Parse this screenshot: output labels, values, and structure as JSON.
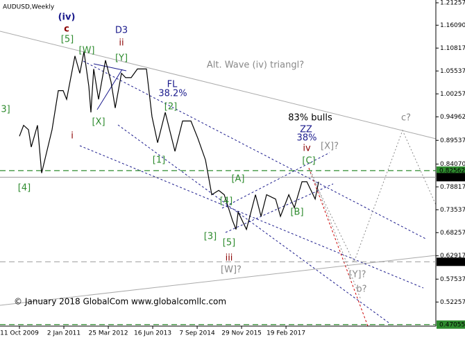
{
  "chart_data": {
    "type": "line",
    "title": "AUDUSD,Weekly",
    "color": "#000000",
    "x": [
      "2009-10-11",
      "2009-11-22",
      "2010-01-10",
      "2010-02-07",
      "2010-04-11",
      "2010-05-23",
      "2010-07-04",
      "2010-09-05",
      "2010-11-07",
      "2010-12-26",
      "2011-01-30",
      "2011-04-24",
      "2011-06-12",
      "2011-07-24",
      "2011-09-11",
      "2011-10-02",
      "2011-10-30",
      "2011-12-18",
      "2012-02-26",
      "2012-04-22",
      "2012-06-03",
      "2012-08-05",
      "2012-09-16",
      "2012-11-11",
      "2013-01-13",
      "2013-04-14",
      "2013-06-09",
      "2013-08-04",
      "2013-10-20",
      "2014-01-26",
      "2014-04-13",
      "2014-07-06",
      "2014-09-14",
      "2014-11-30",
      "2015-02-01",
      "2015-04-12",
      "2015-06-07",
      "2015-08-30",
      "2015-10-04",
      "2015-10-25",
      "2016-01-17",
      "2016-04-17",
      "2016-06-12",
      "2016-08-07",
      "2016-11-06",
      "2016-12-25",
      "2017-03-19",
      "2017-05-14",
      "2017-07-30",
      "2017-09-17",
      "2017-12-10",
      "2018-01-14"
    ],
    "values": [
      0.905,
      0.93,
      0.92,
      0.88,
      0.93,
      0.82,
      0.86,
      0.92,
      1.01,
      1.01,
      0.99,
      1.09,
      1.05,
      1.1,
      1.02,
      0.96,
      1.06,
      0.99,
      1.08,
      1.03,
      0.97,
      1.05,
      1.04,
      1.04,
      1.06,
      1.06,
      0.95,
      0.89,
      0.96,
      0.87,
      0.94,
      0.94,
      0.9,
      0.85,
      0.77,
      0.78,
      0.77,
      0.71,
      0.69,
      0.73,
      0.69,
      0.77,
      0.72,
      0.77,
      0.76,
      0.72,
      0.77,
      0.74,
      0.8,
      0.8,
      0.76,
      0.8
    ],
    "xlim": [
      "2009-03-29",
      "2021-04-10"
    ],
    "xticks": [
      {
        "value": "2009-10-11",
        "label": "11 Oct 2009"
      },
      {
        "value": "2011-01-02",
        "label": "2 Jan 2011"
      },
      {
        "value": "2012-03-25",
        "label": "25 Mar 2012"
      },
      {
        "value": "2013-06-16",
        "label": "16 Jun 2013"
      },
      {
        "value": "2014-09-07",
        "label": "7 Sep 2014"
      },
      {
        "value": "2015-11-29",
        "label": "29 Nov 2015"
      },
      {
        "value": "2017-02-19",
        "label": "19 Feb 2017"
      }
    ],
    "ylim": [
      0.467,
      1.219
    ],
    "yticks": [
      1.21257,
      {
        "value": 1.1609,
        "label": "1.16090"
      },
      1.10817,
      1.05537,
      1.00257,
      0.94962,
      0.89537,
      {
        "value": 0.8407,
        "label": "0.84070"
      },
      0.78817,
      0.73537,
      0.68257,
      0.62917,
      0.57537,
      0.52257
    ],
    "levels": [
      {
        "value": 0.82562,
        "color": "#2e8b2e"
      },
      {
        "value": 0.81044,
        "color": "#000000"
      },
      {
        "value": 0.61531,
        "color": "#000000"
      },
      {
        "value": 0.47055,
        "color": "#2e8b2e"
      }
    ],
    "annotations": [
      {
        "text": "(iv)",
        "color": "#1a1a8c"
      },
      {
        "text": "c",
        "color": "#8b0000"
      },
      {
        "text": "[5]",
        "color": "#2e8b2e"
      },
      {
        "text": "[W]",
        "color": "#2e8b2e"
      },
      {
        "text": "D3",
        "color": "#1a1a8c"
      },
      {
        "text": "ii",
        "color": "#8b0000"
      },
      {
        "text": "[Y]",
        "color": "#2e8b2e"
      },
      {
        "text": "Alt. Wave (iv) triangl?",
        "color": "#888888"
      },
      {
        "text": "FL",
        "color": "#1a1a8c"
      },
      {
        "text": "38.2%",
        "color": "#1a1a8c"
      },
      {
        "text": "[2]",
        "color": "#2e8b2e"
      },
      {
        "text": "3]",
        "color": "#2e8b2e"
      },
      {
        "text": "i",
        "color": "#8b0000"
      },
      {
        "text": "[X]",
        "color": "#2e8b2e"
      },
      {
        "text": "[1]",
        "color": "#2e8b2e"
      },
      {
        "text": "83% bulls",
        "color": "#000000"
      },
      {
        "text": "ZZ",
        "color": "#1a1a8c"
      },
      {
        "text": "38%",
        "color": "#1a1a8c"
      },
      {
        "text": "iv",
        "color": "#8b0000"
      },
      {
        "text": "[X]?",
        "color": "#888888"
      },
      {
        "text": "c?",
        "color": "#888888"
      },
      {
        "text": "[C]",
        "color": "#2e8b2e"
      },
      {
        "text": "[4]",
        "color": "#2e8b2e"
      },
      {
        "text": "[4]",
        "color": "#2e8b2e"
      },
      {
        "text": "[A]",
        "color": "#2e8b2e"
      },
      {
        "text": "[B]",
        "color": "#2e8b2e"
      },
      {
        "text": "[3]",
        "color": "#2e8b2e"
      },
      {
        "text": "[5]",
        "color": "#2e8b2e"
      },
      {
        "text": "iii",
        "color": "#8b0000"
      },
      {
        "text": "[W]?",
        "color": "#888888"
      },
      {
        "text": "[Y]?",
        "color": "#888888"
      },
      {
        "text": "b?",
        "color": "#888888"
      }
    ],
    "footer": "© January 2018 GlobalCom www.globalcomllc.com"
  }
}
